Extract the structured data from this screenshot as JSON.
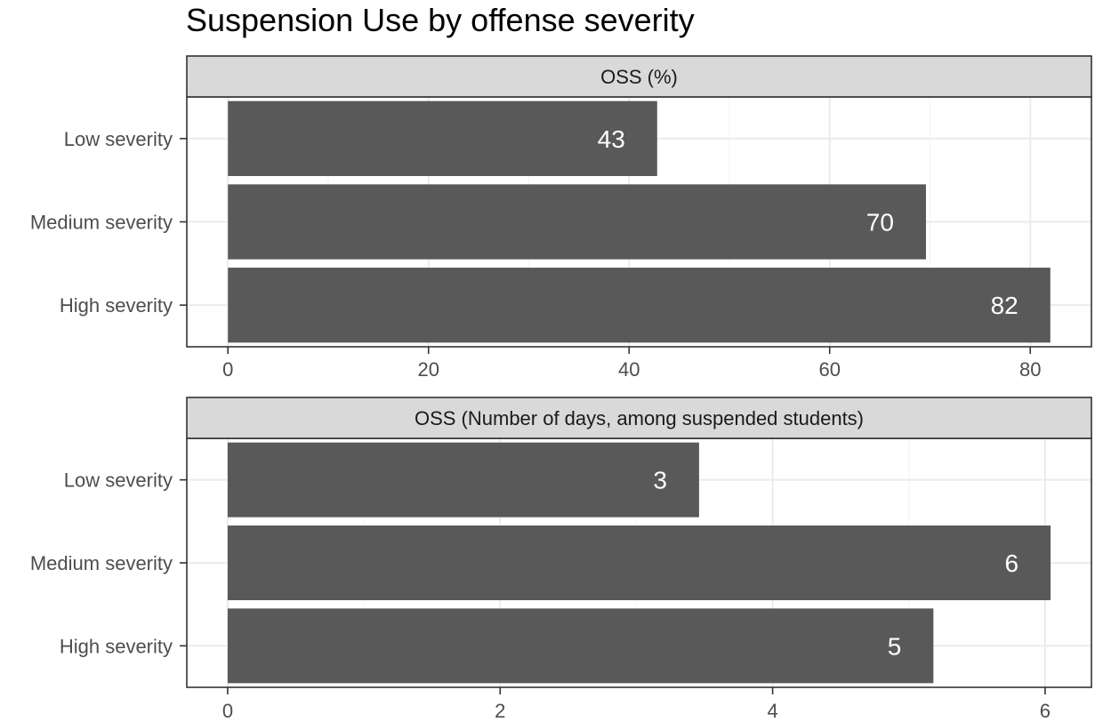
{
  "title": "Suspension Use by offense severity",
  "colors": {
    "bar": "#595959",
    "strip": "#d9d9d9",
    "grid_major": "#ebebeb",
    "grid_minor": "#f5f5f5",
    "panel_border": "#333333",
    "label_text": "#4d4d4d",
    "bar_label": "#ffffff"
  },
  "chart_data": [
    {
      "type": "bar",
      "orientation": "horizontal",
      "strip_label": "OSS (%)",
      "categories": [
        "Low severity",
        "Medium severity",
        "High severity"
      ],
      "values": [
        42.8,
        69.6,
        82
      ],
      "labels": [
        "43",
        "70",
        "82"
      ],
      "xlim": [
        -4.1,
        86.1
      ],
      "xticks": [
        0,
        20,
        40,
        60,
        80
      ],
      "xtick_labels": [
        "0",
        "20",
        "40",
        "60",
        "80"
      ],
      "grid": true
    },
    {
      "type": "bar",
      "orientation": "horizontal",
      "strip_label": "OSS (Number of days, among suspended students)",
      "categories": [
        "Low severity",
        "Medium severity",
        "High severity"
      ],
      "values": [
        3.46,
        6.04,
        5.18
      ],
      "labels": [
        "3",
        "6",
        "5"
      ],
      "xlim": [
        -0.3,
        6.34
      ],
      "xticks": [
        0,
        2,
        4,
        6
      ],
      "xtick_labels": [
        "0",
        "2",
        "4",
        "6"
      ],
      "grid": true
    }
  ]
}
